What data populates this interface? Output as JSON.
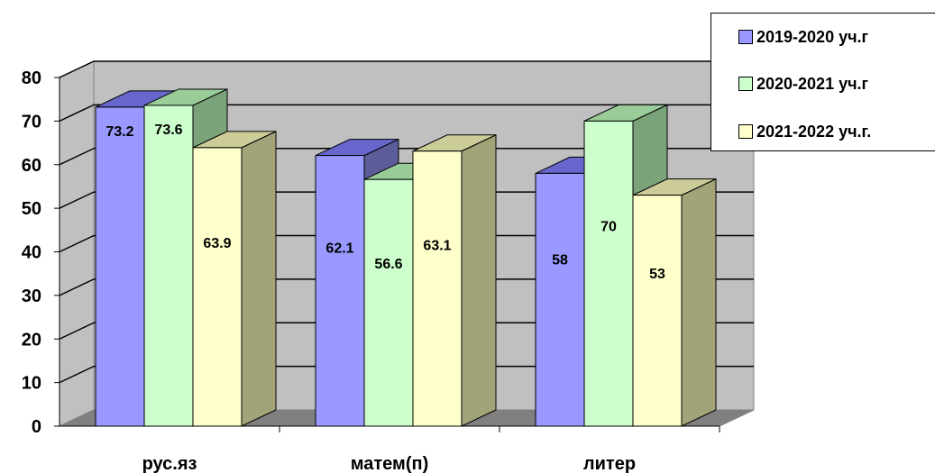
{
  "chart_data": {
    "type": "bar",
    "categories": [
      "рус.яз",
      "матем(п)",
      "литер"
    ],
    "series": [
      {
        "name": "2019-2020 уч.г",
        "values": [
          73.2,
          62.1,
          58
        ],
        "labels": [
          "73.2",
          "62.1",
          "58"
        ],
        "color": "#9999ff",
        "top_color": "#6666cc",
        "side_color": "#5c5c99"
      },
      {
        "name": "2020-2021 уч.г",
        "values": [
          73.6,
          56.6,
          70
        ],
        "labels": [
          "73.6",
          "56.6",
          "70"
        ],
        "color": "#ccffcc",
        "top_color": "#99cc99",
        "side_color": "#7aa37a"
      },
      {
        "name": "2021-2022 уч.г.",
        "values": [
          63.9,
          63.1,
          53
        ],
        "labels": [
          "63.9",
          "63.1",
          "53"
        ],
        "color": "#ffffcc",
        "top_color": "#cccc99",
        "side_color": "#a3a37a"
      }
    ],
    "yticks": [
      "0",
      "10",
      "20",
      "30",
      "40",
      "50",
      "60",
      "70",
      "80"
    ],
    "ylim": [
      0,
      80
    ],
    "grid": true,
    "legend_position": "top-right",
    "wall_color": "#c0c0c0",
    "floor_color": "#808080"
  }
}
